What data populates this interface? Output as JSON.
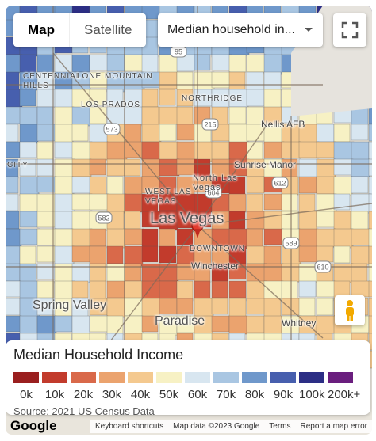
{
  "controls": {
    "map_type": {
      "map_label": "Map",
      "satellite_label": "Satellite",
      "selected": "Map"
    },
    "layer_select": {
      "value": "Median household in..."
    }
  },
  "place_labels": {
    "centennial_hills": "CENTENNIAL HILLS",
    "lone_mountain": "LONE MOUNTAIN",
    "los_prados": "LOS PRADOS",
    "northridge": "NORTHRIDGE",
    "nellis_afb": "Nellis AFB",
    "sunrise_manor": "Sunrise Manor",
    "north_las_vegas": "North Las Vegas",
    "west_las_vegas": "WEST LAS VEGAS",
    "las_vegas": "Las Vegas",
    "downtown": "DOWNTOWN",
    "winchester": "Winchester",
    "spring_valley": "Spring Valley",
    "paradise": "Paradise",
    "whitney": "Whitney",
    "city": "CITY"
  },
  "highway_shields": [
    "95",
    "215",
    "573",
    "612",
    "604",
    "582",
    "589",
    "610"
  ],
  "legend": {
    "title": "Median Household Income",
    "buckets": [
      {
        "label": "0k",
        "color": "#9a1f1f"
      },
      {
        "label": "10k",
        "color": "#c23b2c"
      },
      {
        "label": "20k",
        "color": "#d9694a"
      },
      {
        "label": "30k",
        "color": "#eba36e"
      },
      {
        "label": "40k",
        "color": "#f4c98f"
      },
      {
        "label": "50k",
        "color": "#f7f1c4"
      },
      {
        "label": "60k",
        "color": "#d8e6f0"
      },
      {
        "label": "70k",
        "color": "#a9c6e2"
      },
      {
        "label": "80k",
        "color": "#6f98cb"
      },
      {
        "label": "90k",
        "color": "#475fae"
      },
      {
        "label": "100k",
        "color": "#2c2e85"
      },
      {
        "label": "200k+",
        "color": "#6a1e7e"
      }
    ],
    "source": "Source: 2021 US Census Data"
  },
  "attribution": {
    "logo": "Google",
    "keyboard": "Keyboard shortcuts",
    "map_data": "Map data ©2023 Google",
    "terms": "Terms",
    "report": "Report a map error"
  },
  "icons": {
    "fullscreen": "fullscreen-icon",
    "dropdown": "chevron-down-icon",
    "pegman": "pegman-icon",
    "marker": "map-pin-icon"
  }
}
